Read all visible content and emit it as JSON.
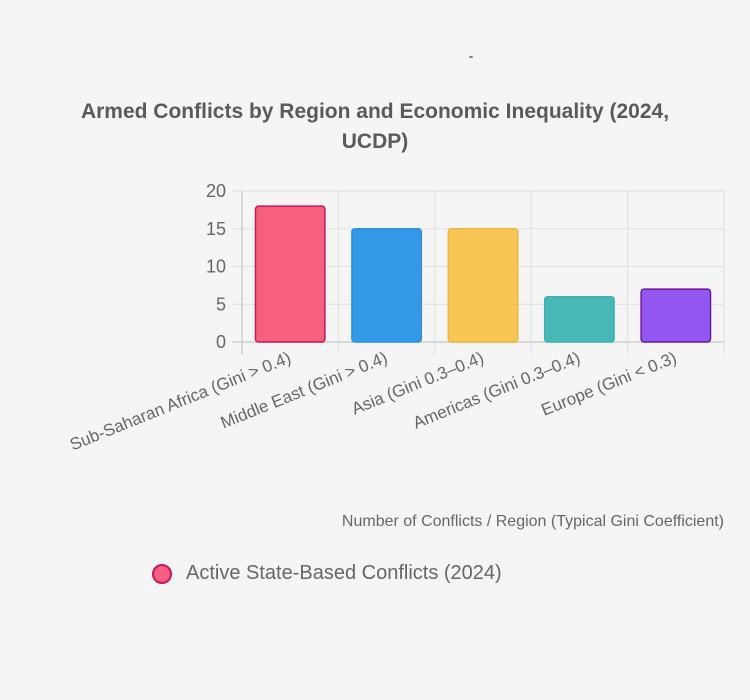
{
  "chart_data": {
    "type": "bar",
    "title": "Armed Conflicts by Region and Economic Inequality (2024, UCDP)",
    "title_lines": [
      "Armed Conflicts by Region and Economic Inequality (2024,",
      "UCDP)"
    ],
    "categories": [
      "Sub-Saharan Africa (Gini > 0.4)",
      "Middle East (Gini > 0.4)",
      "Asia (Gini 0.3–0.4)",
      "Americas (Gini 0.3–0.4)",
      "Europe (Gini < 0.3)"
    ],
    "series": [
      {
        "name": "Active State-Based Conflicts (2024)",
        "values": [
          18,
          15,
          15,
          6,
          7
        ]
      }
    ],
    "bar_colors": [
      "#f65f80",
      "#3399e6",
      "#f8c655",
      "#48b8b6",
      "#9457f1"
    ],
    "bar_border_colors": [
      "#c2185b",
      "#2f8fe0",
      "#f0b440",
      "#3fb0ae",
      "#6a1b9a"
    ],
    "xlabel": "Number of Conflicts / Region (Typical Gini Coefficient)",
    "ylabel": "",
    "ylim": [
      0,
      20
    ],
    "yticks": [
      0,
      5,
      10,
      15,
      20
    ],
    "grid": true,
    "legend": {
      "position": "bottom-left",
      "label": "Active State-Based Conflicts (2024)",
      "color": "#f65f80",
      "border_color": "#c2185b"
    }
  }
}
